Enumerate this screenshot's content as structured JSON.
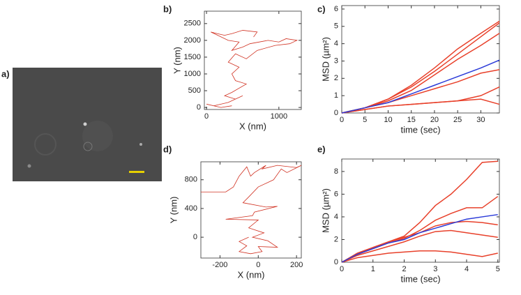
{
  "image_panel": {
    "label": "a)"
  },
  "chart_data": [
    {
      "type": "trajectory",
      "label": "b)",
      "x_label": "X (nm)",
      "y_label": "Y (nm)",
      "color": "#d03020",
      "xlim": [
        -30,
        1310
      ],
      "ylim": [
        -60,
        2870
      ],
      "xticks": [
        0,
        1000
      ],
      "yticks": [
        0,
        500,
        1000,
        1500,
        2000,
        2500
      ],
      "x": [
        650,
        700,
        500,
        350,
        250,
        150,
        60,
        300,
        450,
        350,
        500,
        600,
        850,
        1000,
        1100,
        1250,
        1150,
        950,
        700,
        550,
        400,
        300,
        450,
        350,
        400,
        550,
        350,
        250,
        400,
        500,
        300,
        100,
        0,
        200,
        350
      ],
      "values": [
        2100,
        2250,
        2300,
        2200,
        2150,
        2200,
        2250,
        2000,
        1950,
        1700,
        1800,
        1900,
        2000,
        1950,
        2050,
        2000,
        1900,
        1850,
        1700,
        1450,
        1600,
        1350,
        1200,
        1000,
        800,
        700,
        450,
        350,
        250,
        350,
        150,
        50,
        100,
        0,
        50
      ]
    },
    {
      "type": "line",
      "label": "c)",
      "x_label": "time (sec)",
      "y_label": "MSD (µm²)",
      "xlim": [
        0,
        34
      ],
      "ylim": [
        0,
        6.2
      ],
      "xticks": [
        0,
        5,
        10,
        15,
        20,
        25,
        30
      ],
      "yticks": [
        0,
        1,
        2,
        3,
        4,
        5,
        6
      ],
      "x": [
        0,
        5,
        10,
        15,
        20,
        25,
        30,
        34
      ],
      "series": [
        {
          "color": "#e8402a",
          "values": [
            0,
            0.3,
            0.8,
            1.6,
            2.6,
            3.7,
            4.6,
            5.3
          ]
        },
        {
          "color": "#e8402a",
          "values": [
            0,
            0.3,
            0.8,
            1.5,
            2.4,
            3.4,
            4.4,
            5.2
          ]
        },
        {
          "color": "#e8402a",
          "values": [
            0,
            0.3,
            0.7,
            1.3,
            2.2,
            3.1,
            3.9,
            4.6
          ]
        },
        {
          "color": "#e8402a",
          "values": [
            0,
            0.3,
            0.6,
            1.0,
            1.4,
            1.8,
            2.3,
            2.5
          ]
        },
        {
          "color": "#e8402a",
          "values": [
            0,
            0.2,
            0.4,
            0.5,
            0.6,
            0.7,
            1.0,
            1.5
          ]
        },
        {
          "color": "#e8402a",
          "values": [
            0,
            0.2,
            0.4,
            0.5,
            0.6,
            0.7,
            0.8,
            0.5
          ]
        },
        {
          "color": "#2a3ad8",
          "values": [
            0,
            0.3,
            0.6,
            1.1,
            1.6,
            2.1,
            2.6,
            3.05
          ]
        }
      ]
    },
    {
      "type": "trajectory",
      "label": "d)",
      "x_label": "X (nm)",
      "y_label": "Y (nm)",
      "color": "#d03020",
      "xlim": [
        -300,
        225
      ],
      "ylim": [
        -290,
        1050
      ],
      "xticks": [
        -200,
        0,
        200
      ],
      "yticks": [
        0,
        400,
        800
      ],
      "x": [
        -300,
        -170,
        -130,
        -100,
        -60,
        -40,
        -20,
        40,
        20,
        100,
        200,
        225,
        150,
        120,
        80,
        0,
        -50,
        -80,
        40,
        100,
        -20,
        -30,
        -170,
        0,
        -50,
        30,
        -30,
        50,
        100,
        0,
        20,
        -40,
        -100,
        -60,
        -100,
        -50
      ],
      "values": [
        630,
        630,
        700,
        850,
        980,
        850,
        900,
        1000,
        950,
        1000,
        970,
        1000,
        900,
        950,
        800,
        700,
        560,
        480,
        420,
        430,
        350,
        300,
        250,
        240,
        130,
        60,
        0,
        -50,
        -140,
        -130,
        -200,
        -230,
        -200,
        -120,
        -60,
        0
      ]
    },
    {
      "type": "line",
      "label": "e)",
      "x_label": "time (sec)",
      "y_label": "MSD (µm²)",
      "xlim": [
        0,
        5.05
      ],
      "ylim": [
        0,
        9.1
      ],
      "xticks": [
        0,
        1,
        2,
        3,
        4,
        5
      ],
      "yticks": [
        0,
        2,
        4,
        6,
        8
      ],
      "x": [
        0,
        0.5,
        1,
        1.5,
        2,
        2.5,
        3,
        3.5,
        4,
        4.5,
        5
      ],
      "series": [
        {
          "color": "#e8402a",
          "values": [
            0,
            0.8,
            1.3,
            1.8,
            2.3,
            3.5,
            5,
            6,
            7.3,
            8.8,
            8.9
          ]
        },
        {
          "color": "#e8402a",
          "values": [
            0,
            0.7,
            1.2,
            1.7,
            2.1,
            2.8,
            3.7,
            4.3,
            4.8,
            4.8,
            5.8
          ]
        },
        {
          "color": "#e8402a",
          "values": [
            0,
            0.7,
            1.3,
            1.8,
            2.2,
            2.6,
            3.2,
            3.5,
            3.6,
            3.5,
            3.3
          ]
        },
        {
          "color": "#e8402a",
          "values": [
            0,
            0.6,
            1.0,
            1.4,
            1.8,
            2.3,
            2.7,
            2.8,
            2.6,
            2.4,
            2.2
          ]
        },
        {
          "color": "#e8402a",
          "values": [
            0,
            0.4,
            0.6,
            0.8,
            0.9,
            1.0,
            1.0,
            0.9,
            0.7,
            0.5,
            0.8
          ]
        },
        {
          "color": "#2a3ad8",
          "values": [
            0,
            0.7,
            1.2,
            1.7,
            2.0,
            2.6,
            3.0,
            3.4,
            3.8,
            4.0,
            4.2
          ]
        }
      ]
    }
  ]
}
